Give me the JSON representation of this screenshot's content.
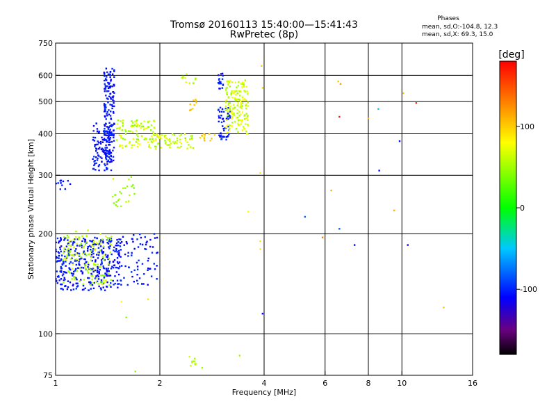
{
  "chart_data": {
    "type": "scatter",
    "title_line1": "Tromsø 20160113 15:40:00—15:41:43",
    "title_line2": "RwPretec (8p)",
    "info": {
      "heading": "Phases",
      "line_o": "mean, sd,O:-104.8, 12.3",
      "line_x": "mean, sd,X:  69.3, 15.0"
    },
    "xlabel": "Frequency [MHz]",
    "ylabel": "Stationary phase Virtual Height [km]",
    "x_scale": "log",
    "y_scale": "log",
    "xlim": [
      1,
      16
    ],
    "ylim": [
      75,
      750
    ],
    "x_ticks": [
      {
        "value": 1,
        "label": "1"
      },
      {
        "value": 2,
        "label": "2"
      },
      {
        "value": 4,
        "label": "4"
      },
      {
        "value": 6,
        "label": "6"
      },
      {
        "value": 8,
        "label": "8"
      },
      {
        "value": 10,
        "label": "10"
      },
      {
        "value": 16,
        "label": "16"
      }
    ],
    "y_ticks": [
      {
        "value": 75,
        "label": "75"
      },
      {
        "value": 100,
        "label": "100"
      },
      {
        "value": 200,
        "label": "200"
      },
      {
        "value": 300,
        "label": "300"
      },
      {
        "value": 400,
        "label": "400"
      },
      {
        "value": 500,
        "label": "500"
      },
      {
        "value": 600,
        "label": "600"
      },
      {
        "value": 750,
        "label": "750"
      }
    ],
    "x_grid": [
      2,
      4,
      6,
      8,
      10
    ],
    "y_grid": [
      100,
      200,
      300,
      400,
      500,
      600
    ],
    "grid": true,
    "colorbar": {
      "label": "[deg]",
      "range": [
        -180,
        180
      ],
      "ticks": [
        {
          "value": 100,
          "label": "100"
        },
        {
          "value": 0,
          "label": "0"
        },
        {
          "value": -100,
          "label": "-100"
        }
      ],
      "stops": [
        {
          "value": -180,
          "color": "#000000"
        },
        {
          "value": -150,
          "color": "#6a0080"
        },
        {
          "value": -110,
          "color": "#0000ff"
        },
        {
          "value": -50,
          "color": "#00c8ff"
        },
        {
          "value": 0,
          "color": "#00ff00"
        },
        {
          "value": 80,
          "color": "#ffff00"
        },
        {
          "value": 130,
          "color": "#ff8000"
        },
        {
          "value": 180,
          "color": "#ff0000"
        }
      ]
    },
    "series": [
      {
        "mode": "O",
        "clusters": [
          {
            "f": [
              1.0,
              1.55
            ],
            "h": [
              135,
              195
            ],
            "n": 380,
            "phase": [
              -115,
              -95
            ]
          },
          {
            "f": [
              1.55,
              1.98
            ],
            "h": [
              140,
              200
            ],
            "n": 70,
            "phase": [
              -115,
              -95
            ]
          },
          {
            "f": [
              1.38,
              1.48
            ],
            "h": [
              330,
              640
            ],
            "n": 170,
            "phase": [
              -115,
              -95
            ]
          },
          {
            "f": [
              1.28,
              1.45
            ],
            "h": [
              310,
              430
            ],
            "n": 110,
            "phase": [
              -115,
              -95
            ]
          },
          {
            "f": [
              2.95,
              3.2
            ],
            "h": [
              380,
              480
            ],
            "n": 50,
            "phase": [
              -115,
              -90
            ]
          },
          {
            "f": [
              2.95,
              3.05
            ],
            "h": [
              540,
              610
            ],
            "n": 18,
            "phase": [
              -115,
              -90
            ]
          },
          {
            "f": [
              1.0,
              1.12
            ],
            "h": [
              270,
              290
            ],
            "n": 12,
            "phase": [
              -110,
              -95
            ]
          }
        ],
        "points": [
          {
            "f": 3.96,
            "h": 115,
            "phase": -115
          },
          {
            "f": 8.6,
            "h": 310,
            "phase": -110
          },
          {
            "f": 9.85,
            "h": 380,
            "phase": -110
          },
          {
            "f": 8.55,
            "h": 475,
            "phase": -50
          },
          {
            "f": 5.25,
            "h": 225,
            "phase": -80
          },
          {
            "f": 7.3,
            "h": 185,
            "phase": -110
          },
          {
            "f": 10.4,
            "h": 185,
            "phase": -115
          },
          {
            "f": 6.6,
            "h": 207,
            "phase": -80
          }
        ]
      },
      {
        "mode": "X",
        "clusters": [
          {
            "f": [
              1.05,
              1.45
            ],
            "h": [
              140,
              205
            ],
            "n": 140,
            "phase": [
              40,
              75
            ]
          },
          {
            "f": [
              1.5,
              1.95
            ],
            "h": [
              360,
              440
            ],
            "n": 110,
            "phase": [
              40,
              80
            ]
          },
          {
            "f": [
              1.95,
              2.5
            ],
            "h": [
              360,
              400
            ],
            "n": 60,
            "phase": [
              40,
              80
            ]
          },
          {
            "f": [
              3.1,
              3.6
            ],
            "h": [
              400,
              580
            ],
            "n": 160,
            "phase": [
              45,
              85
            ]
          },
          {
            "f": [
              2.3,
              2.55
            ],
            "h": [
              560,
              610
            ],
            "n": 12,
            "phase": [
              45,
              80
            ]
          },
          {
            "f": [
              1.45,
              1.7
            ],
            "h": [
              240,
              300
            ],
            "n": 25,
            "phase": [
              35,
              60
            ]
          },
          {
            "f": [
              2.4,
              2.55
            ],
            "h": [
              80,
              86
            ],
            "n": 10,
            "phase": [
              45,
              70
            ]
          },
          {
            "f": [
              2.4,
              2.55
            ],
            "h": [
              470,
              510
            ],
            "n": 10,
            "phase": [
              95,
              110
            ]
          },
          {
            "f": [
              2.6,
              2.9
            ],
            "h": [
              380,
              400
            ],
            "n": 12,
            "phase": [
              90,
              110
            ]
          }
        ],
        "points": [
          {
            "f": 3.93,
            "h": 640,
            "phase": 100
          },
          {
            "f": 3.96,
            "h": 550,
            "phase": 95
          },
          {
            "f": 6.55,
            "h": 575,
            "phase": 100
          },
          {
            "f": 6.65,
            "h": 565,
            "phase": 120
          },
          {
            "f": 10.1,
            "h": 530,
            "phase": 100
          },
          {
            "f": 6.6,
            "h": 450,
            "phase": 170
          },
          {
            "f": 11.0,
            "h": 495,
            "phase": 160
          },
          {
            "f": 8.0,
            "h": 445,
            "phase": 110
          },
          {
            "f": 9.5,
            "h": 235,
            "phase": 110
          },
          {
            "f": 6.25,
            "h": 270,
            "phase": 110
          },
          {
            "f": 5.9,
            "h": 195,
            "phase": 130
          },
          {
            "f": 3.9,
            "h": 190,
            "phase": 90
          },
          {
            "f": 3.9,
            "h": 180,
            "phase": 85
          },
          {
            "f": 3.6,
            "h": 233,
            "phase": 80
          },
          {
            "f": 3.9,
            "h": 305,
            "phase": 90
          },
          {
            "f": 13.2,
            "h": 120,
            "phase": 100
          },
          {
            "f": 1.85,
            "h": 127,
            "phase": 90
          },
          {
            "f": 1.55,
            "h": 125,
            "phase": 80
          },
          {
            "f": 2.65,
            "h": 79,
            "phase": 50
          },
          {
            "f": 3.4,
            "h": 86,
            "phase": 50
          },
          {
            "f": 1.6,
            "h": 112,
            "phase": 40
          },
          {
            "f": 1.7,
            "h": 77,
            "phase": 45
          }
        ]
      }
    ]
  }
}
